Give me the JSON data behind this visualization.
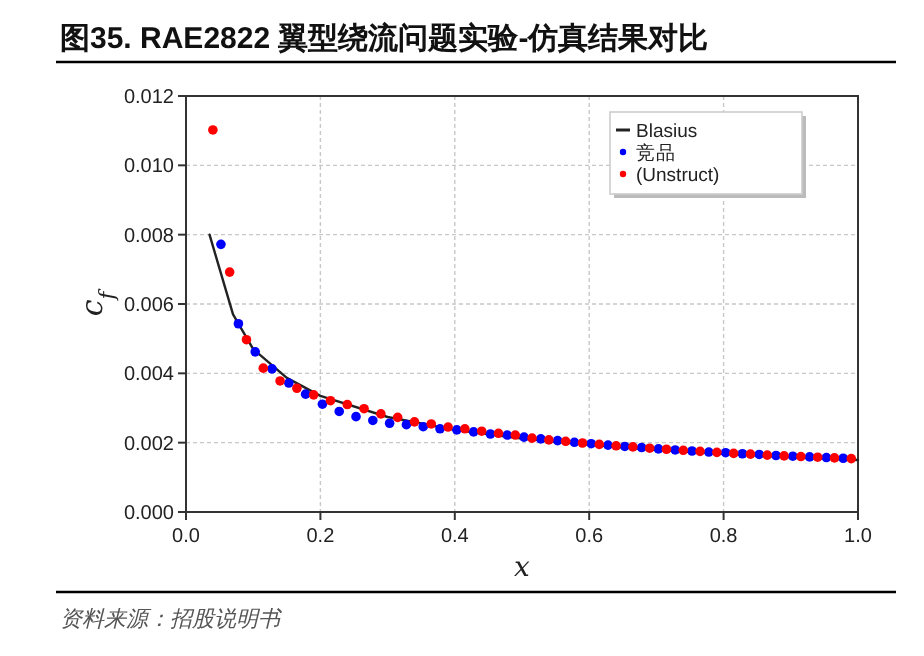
{
  "chart_data": {
    "type": "scatter",
    "title": "图35. RAE2822 翼型绕流问题实验-仿真结果对比",
    "xlabel": "x",
    "ylabel": "c$_{f}$",
    "annotations": [
      "资料来源：招股说明书"
    ],
    "xlim": [
      0,
      1.0
    ],
    "ylim": [
      0,
      0.012
    ],
    "xticks": [
      {
        "value": 0,
        "label": "0.0"
      },
      0.2,
      0.4,
      0.6,
      0.8,
      {
        "value": 1,
        "label": "1.0"
      }
    ],
    "yticks": [
      {
        "value": 0,
        "label": "0.000"
      },
      {
        "value": 0.002,
        "label": "0.002"
      },
      {
        "value": 0.004,
        "label": "0.004"
      },
      {
        "value": 0.006,
        "label": "0.006"
      },
      {
        "value": 0.008,
        "label": "0.008"
      },
      {
        "value": 0.01,
        "label": "0.010"
      },
      {
        "value": 0.012,
        "label": "0.012"
      }
    ],
    "grid": true,
    "legend": "top right",
    "series": [
      {
        "name": "Blasius",
        "type": "line",
        "color": "#222222",
        "line_style": "solid",
        "x": [
          0.035,
          0.07,
          0.1,
          0.15,
          0.2,
          0.3,
          0.4,
          0.5,
          0.6,
          0.7,
          0.8,
          0.9,
          1.0
        ],
        "values": [
          0.008,
          0.0057,
          0.0047,
          0.00387,
          0.00335,
          0.00274,
          0.00237,
          0.00212,
          0.00194,
          0.00179,
          0.00168,
          0.00158,
          0.0015
        ]
      },
      {
        "name": "竞品",
        "marker": "circle",
        "color": "#0000ff",
        "x": [
          0.052,
          0.078,
          0.103,
          0.128,
          0.153,
          0.178,
          0.203,
          0.228,
          0.253,
          0.278,
          0.303,
          0.328,
          0.353,
          0.378,
          0.403,
          0.428,
          0.453,
          0.478,
          0.503,
          0.528,
          0.553,
          0.578,
          0.603,
          0.628,
          0.653,
          0.678,
          0.703,
          0.728,
          0.753,
          0.778,
          0.803,
          0.828,
          0.853,
          0.878,
          0.903,
          0.928,
          0.953,
          0.978
        ],
        "values": [
          0.00772,
          0.00543,
          0.00462,
          0.00413,
          0.00372,
          0.0034,
          0.00311,
          0.0029,
          0.00275,
          0.00264,
          0.00256,
          0.00252,
          0.00246,
          0.0024,
          0.00237,
          0.00231,
          0.00225,
          0.00222,
          0.00216,
          0.00211,
          0.00206,
          0.00201,
          0.00197,
          0.00193,
          0.00189,
          0.00186,
          0.00182,
          0.00179,
          0.00176,
          0.00173,
          0.00171,
          0.00168,
          0.00166,
          0.00163,
          0.00161,
          0.00159,
          0.00157,
          0.00155
        ]
      },
      {
        "name": "(Unstruct)",
        "marker": "circle",
        "color": "#ff0000",
        "x": [
          0.04,
          0.065,
          0.09,
          0.115,
          0.14,
          0.165,
          0.19,
          0.215,
          0.24,
          0.265,
          0.29,
          0.315,
          0.34,
          0.365,
          0.39,
          0.415,
          0.44,
          0.465,
          0.49,
          0.515,
          0.54,
          0.565,
          0.59,
          0.615,
          0.64,
          0.665,
          0.69,
          0.715,
          0.74,
          0.765,
          0.79,
          0.815,
          0.84,
          0.865,
          0.89,
          0.915,
          0.94,
          0.965,
          0.99
        ],
        "values": [
          0.01102,
          0.00692,
          0.00497,
          0.00415,
          0.00378,
          0.00357,
          0.00338,
          0.00321,
          0.0031,
          0.00298,
          0.00283,
          0.00273,
          0.0026,
          0.00254,
          0.00245,
          0.0024,
          0.00233,
          0.00227,
          0.00222,
          0.00213,
          0.00208,
          0.00204,
          0.00199,
          0.00195,
          0.00191,
          0.00188,
          0.00184,
          0.00181,
          0.00178,
          0.00175,
          0.00172,
          0.00169,
          0.00167,
          0.00164,
          0.00162,
          0.0016,
          0.00158,
          0.00156,
          0.00154
        ]
      }
    ]
  }
}
